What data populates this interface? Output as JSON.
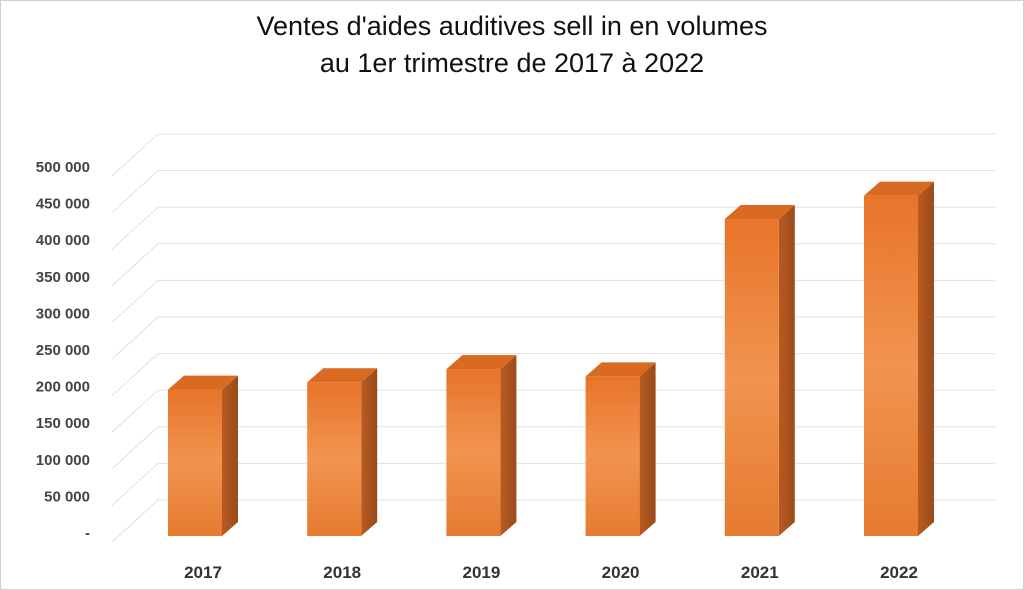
{
  "chart_data": {
    "type": "bar",
    "title_lines": [
      "Ventes d'aides auditives sell in en volumes",
      "au 1er trimestre de 2017 à 2022"
    ],
    "categories": [
      "2017",
      "2018",
      "2019",
      "2020",
      "2021",
      "2022"
    ],
    "values": [
      200000,
      210000,
      228000,
      218000,
      433000,
      465000
    ],
    "ylim": [
      0,
      500000
    ],
    "yticks": [
      0,
      50000,
      100000,
      150000,
      200000,
      250000,
      300000,
      350000,
      400000,
      450000,
      500000
    ],
    "ytick_labels": [
      "-",
      "50 000",
      "100 000",
      "150 000",
      "200 000",
      "250 000",
      "300 000",
      "350 000",
      "400 000",
      "450 000",
      "500 000"
    ],
    "grid": true,
    "legend": "none",
    "style": "3d",
    "colors": {
      "bar_front_top": "#e8742a",
      "bar_front_mid": "#f1944f",
      "bar_front_bottom": "#e67a30",
      "bar_side": "#a7521d",
      "bar_top": "#d96a22",
      "grid": "#e0e0e0"
    }
  }
}
